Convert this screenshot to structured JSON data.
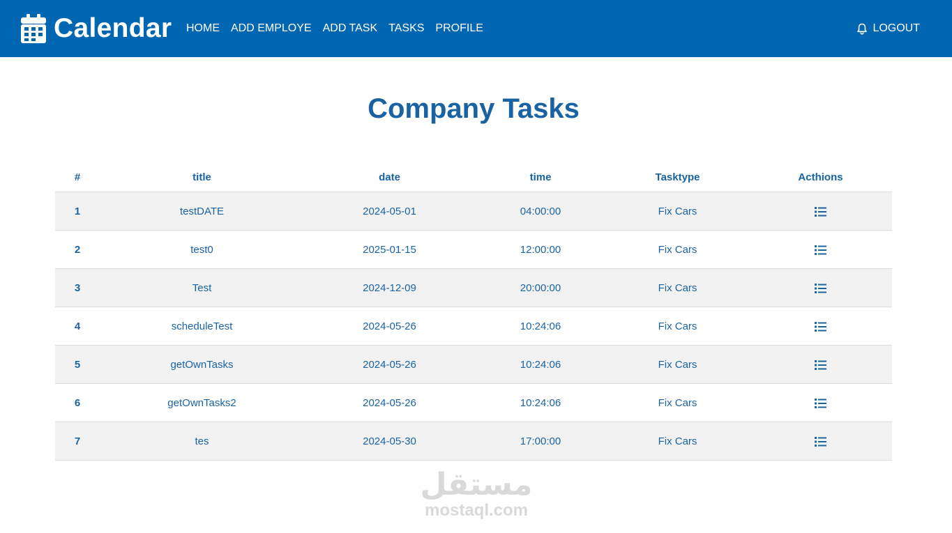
{
  "nav": {
    "brand": "Calendar",
    "brand_icon": "calendar-icon",
    "links": [
      "HOME",
      "ADD EMPLOYE",
      "ADD TASK",
      "TASKS",
      "PROFILE"
    ],
    "logout_label": "LOGOUT",
    "logout_icon": "bell-icon",
    "background_color": "#0166b1"
  },
  "page_title": "Company Tasks",
  "table": {
    "headers": [
      "#",
      "title",
      "date",
      "time",
      "Tasktype",
      "Acthions"
    ],
    "action_icon": "list-icon",
    "rows": [
      {
        "id": "1",
        "title": "testDATE",
        "date": "2024-05-01",
        "time": "04:00:00",
        "tasktype": "Fix Cars"
      },
      {
        "id": "2",
        "title": "test0",
        "date": "2025-01-15",
        "time": "12:00:00",
        "tasktype": "Fix Cars"
      },
      {
        "id": "3",
        "title": "Test",
        "date": "2024-12-09",
        "time": "20:00:00",
        "tasktype": "Fix Cars"
      },
      {
        "id": "4",
        "title": "scheduleTest",
        "date": "2024-05-26",
        "time": "10:24:06",
        "tasktype": "Fix Cars"
      },
      {
        "id": "5",
        "title": "getOwnTasks",
        "date": "2024-05-26",
        "time": "10:24:06",
        "tasktype": "Fix Cars"
      },
      {
        "id": "6",
        "title": "getOwnTasks2",
        "date": "2024-05-26",
        "time": "10:24:06",
        "tasktype": "Fix Cars"
      },
      {
        "id": "7",
        "title": "tes",
        "date": "2024-05-30",
        "time": "17:00:00",
        "tasktype": "Fix Cars"
      }
    ]
  },
  "watermark": {
    "arabic": "مستقل",
    "latin": "mostaql.com"
  },
  "colors": {
    "accent": "#1a63a3",
    "row_stripe": "#f2f2f2"
  }
}
